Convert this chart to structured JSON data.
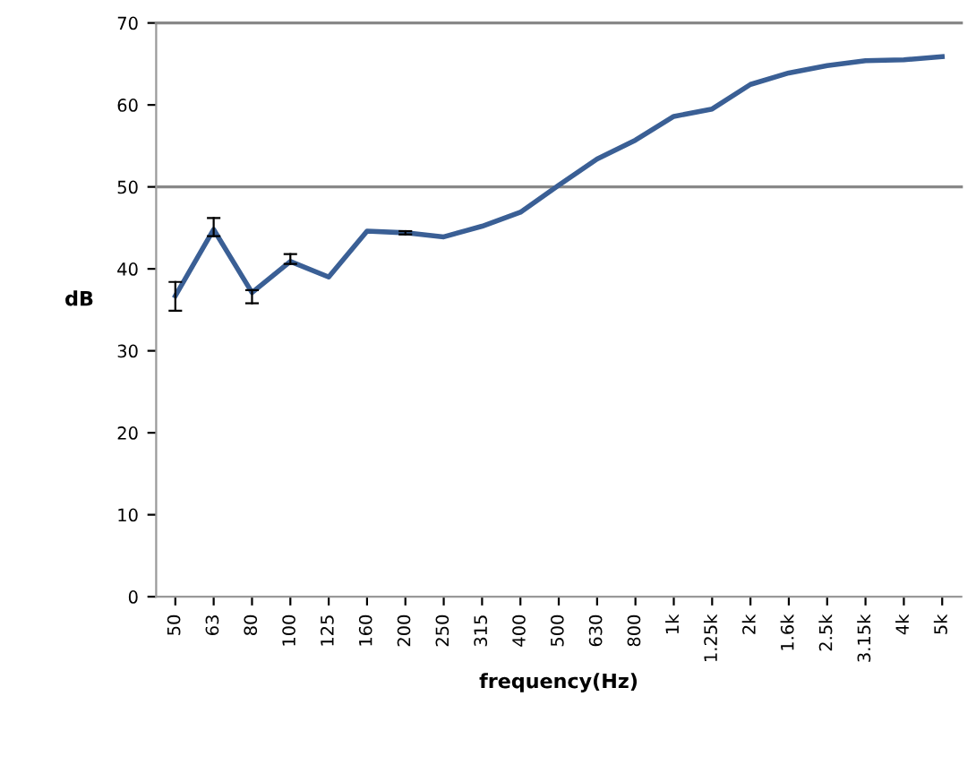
{
  "chart_data": {
    "type": "line",
    "xlabel": "frequency(Hz)",
    "ylabel": "dB",
    "categories": [
      "50",
      "63",
      "80",
      "100",
      "125",
      "160",
      "200",
      "250",
      "315",
      "400",
      "500",
      "630",
      "800",
      "1k",
      "1.25k",
      "2k",
      "1.6k",
      "2.5k",
      "3.15k",
      "4k",
      "5k"
    ],
    "series": [
      {
        "color": "#3a5f95",
        "values": [
          36.7,
          44.8,
          37.1,
          40.9,
          39.0,
          44.6,
          44.4,
          43.9,
          45.2,
          46.9,
          50.2,
          53.4,
          55.7,
          58.6,
          59.5,
          62.5,
          63.9,
          64.8,
          65.4,
          65.5,
          65.9
        ],
        "errors": [
          [
            34.9,
            38.4
          ],
          [
            44.0,
            46.2
          ],
          [
            35.8,
            37.4
          ],
          [
            40.6,
            41.8
          ],
          null,
          null,
          [
            44.2,
            44.6
          ],
          null,
          null,
          null,
          null,
          null,
          null,
          null,
          null,
          null,
          null,
          null,
          null,
          null,
          null
        ]
      }
    ],
    "ylim": [
      0,
      70
    ],
    "yticks": [
      0,
      10,
      20,
      30,
      40,
      50,
      60,
      70
    ],
    "ref_lines": [
      {
        "axis": "y",
        "value": 50,
        "color": "#888888"
      }
    ],
    "grid": false,
    "legend": false,
    "marker": "none",
    "line_style": "solid"
  }
}
